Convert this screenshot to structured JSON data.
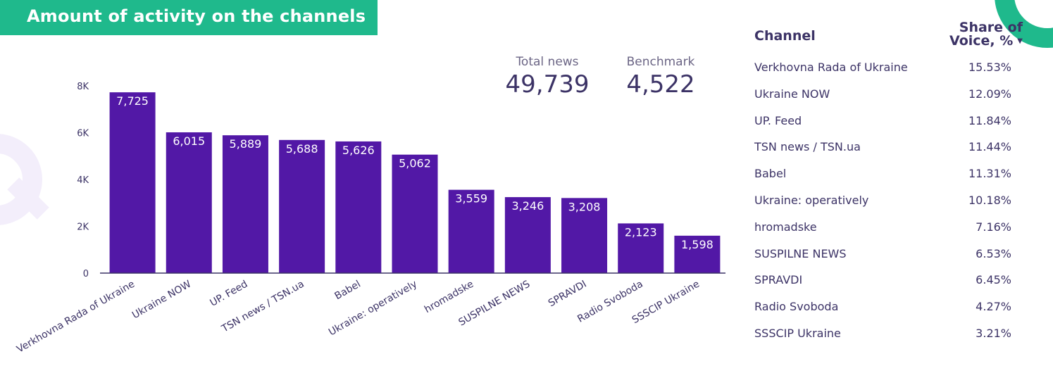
{
  "title": "Amount of activity on the channels",
  "kpis": {
    "total_label": "Total news",
    "total_value": "49,739",
    "benchmark_label": "Benchmark",
    "benchmark_value": "4,522"
  },
  "colors": {
    "bar": "#5218a6",
    "accent": "#1fb98c",
    "text": "#3c3366"
  },
  "chart_data": {
    "type": "bar",
    "categories": [
      "Verkhovna Rada of Ukraine",
      "Ukraine NOW",
      "UP. Feed",
      "TSN news / TSN.ua",
      "Babel",
      "Ukraine: operatively",
      "hromadske",
      "SUSPILNE NEWS",
      "SPRAVDI",
      "Radio Svoboda",
      "SSSCIP Ukraine"
    ],
    "values": [
      7725,
      6015,
      5889,
      5688,
      5626,
      5062,
      3559,
      3246,
      3208,
      2123,
      1598
    ],
    "value_labels": [
      "7,725",
      "6,015",
      "5,889",
      "5,688",
      "5,626",
      "5,062",
      "3,559",
      "3,246",
      "3,208",
      "2,123",
      "1,598"
    ],
    "yticks": [
      0,
      2000,
      4000,
      6000,
      8000
    ],
    "ytick_labels": [
      "0",
      "2K",
      "4K",
      "6K",
      "8K"
    ],
    "ylim": [
      0,
      8000
    ],
    "title": "",
    "xlabel": "",
    "ylabel": "",
    "grid": false
  },
  "table": {
    "header_channel": "Channel",
    "header_share_line1": "Share of",
    "header_share_line2": "Voice, %",
    "sort_icon": "triangle-down-icon",
    "rows": [
      {
        "channel": "Verkhovna Rada of Ukraine",
        "share": "15.53%"
      },
      {
        "channel": "Ukraine NOW",
        "share": "12.09%"
      },
      {
        "channel": "UP. Feed",
        "share": "11.84%"
      },
      {
        "channel": "TSN news / TSN.ua",
        "share": "11.44%"
      },
      {
        "channel": "Babel",
        "share": "11.31%"
      },
      {
        "channel": "Ukraine: operatively",
        "share": "10.18%"
      },
      {
        "channel": "hromadske",
        "share": "7.16%"
      },
      {
        "channel": "SUSPILNE NEWS",
        "share": "6.53%"
      },
      {
        "channel": "SPRAVDI",
        "share": "6.45%"
      },
      {
        "channel": "Radio Svoboda",
        "share": "4.27%"
      },
      {
        "channel": "SSSCIP Ukraine",
        "share": "3.21%"
      }
    ]
  }
}
